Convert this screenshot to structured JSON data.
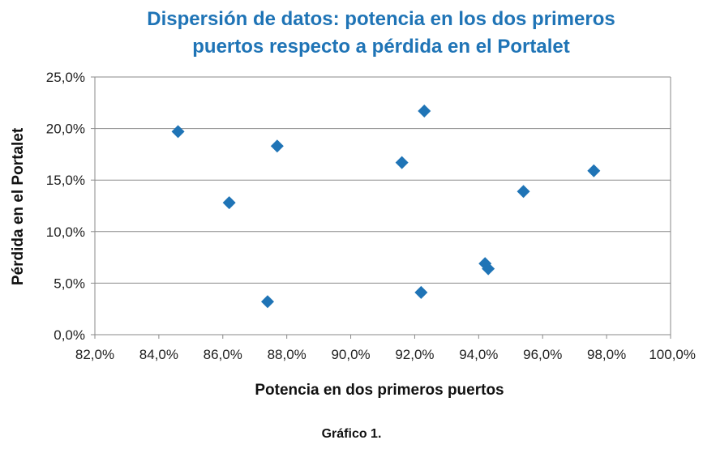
{
  "caption": "Gráfico 1.",
  "chart_data": {
    "type": "scatter",
    "title_lines": [
      "Dispersión de datos: potencia en los dos primeros",
      "puertos respecto a pérdida en el Portalet"
    ],
    "xlabel": "Potencia en dos primeros puertos",
    "ylabel": "Pérdida en el Portalet",
    "xlim": [
      82.0,
      100.0
    ],
    "ylim": [
      0.0,
      25.0
    ],
    "x_ticks": [
      82.0,
      84.0,
      86.0,
      88.0,
      90.0,
      92.0,
      94.0,
      96.0,
      98.0,
      100.0
    ],
    "y_ticks": [
      0.0,
      5.0,
      10.0,
      15.0,
      20.0,
      25.0
    ],
    "x_tick_labels": [
      "82,0%",
      "84,0%",
      "86,0%",
      "88,0%",
      "90,0%",
      "92,0%",
      "94,0%",
      "96,0%",
      "98,0%",
      "100,0%"
    ],
    "y_tick_labels": [
      "0,0%",
      "5,0%",
      "10,0%",
      "15,0%",
      "20,0%",
      "25,0%"
    ],
    "grid": "horizontal",
    "marker": "diamond",
    "marker_color": "#1f74b6",
    "points": [
      {
        "x": 84.6,
        "y": 19.7
      },
      {
        "x": 86.2,
        "y": 12.8
      },
      {
        "x": 87.4,
        "y": 3.2
      },
      {
        "x": 87.7,
        "y": 18.3
      },
      {
        "x": 91.6,
        "y": 16.7
      },
      {
        "x": 92.2,
        "y": 4.1
      },
      {
        "x": 92.3,
        "y": 21.7
      },
      {
        "x": 94.2,
        "y": 6.9
      },
      {
        "x": 94.3,
        "y": 6.4
      },
      {
        "x": 95.4,
        "y": 13.9
      },
      {
        "x": 97.6,
        "y": 15.9
      }
    ]
  }
}
